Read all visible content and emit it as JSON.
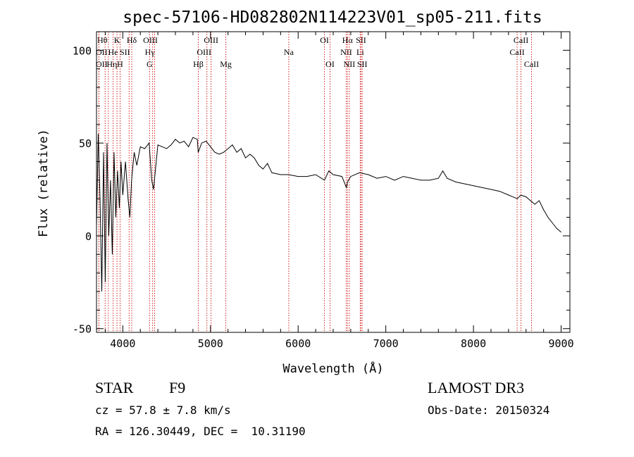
{
  "chart_data": {
    "type": "line",
    "title": "spec-57106-HD082802N114223V01_sp05-211.fits",
    "xlabel": "Wavelength (Å)",
    "ylabel": "Flux (relative)",
    "xlim": [
      3700,
      9100
    ],
    "ylim": [
      -52,
      110
    ],
    "xticks": [
      4000,
      5000,
      6000,
      7000,
      8000,
      9000
    ],
    "yticks": [
      -50,
      0,
      50,
      100
    ],
    "series": [
      {
        "name": "flux",
        "x": [
          3700,
          3720,
          3740,
          3760,
          3780,
          3800,
          3820,
          3840,
          3860,
          3880,
          3900,
          3920,
          3940,
          3960,
          3980,
          4000,
          4030,
          4060,
          4080,
          4100,
          4130,
          4160,
          4200,
          4250,
          4300,
          4330,
          4350,
          4400,
          4450,
          4500,
          4550,
          4600,
          4650,
          4700,
          4750,
          4800,
          4850,
          4860,
          4900,
          4950,
          5000,
          5050,
          5100,
          5150,
          5200,
          5250,
          5300,
          5350,
          5400,
          5450,
          5500,
          5550,
          5600,
          5650,
          5700,
          5800,
          5890,
          6000,
          6100,
          6200,
          6300,
          6350,
          6400,
          6500,
          6550,
          6563,
          6600,
          6700,
          6800,
          6900,
          7000,
          7100,
          7200,
          7300,
          7400,
          7500,
          7600,
          7650,
          7700,
          7800,
          7900,
          8000,
          8100,
          8200,
          8300,
          8400,
          8450,
          8500,
          8540,
          8600,
          8650,
          8700,
          8750,
          8800,
          8850,
          8900,
          8950,
          9000
        ],
        "y": [
          5,
          55,
          20,
          -30,
          45,
          -25,
          50,
          0,
          30,
          -10,
          45,
          10,
          35,
          15,
          40,
          22,
          40,
          20,
          10,
          30,
          45,
          38,
          48,
          47,
          50,
          30,
          25,
          49,
          48,
          47,
          49,
          52,
          50,
          51,
          48,
          53,
          52,
          45,
          50,
          51,
          48,
          45,
          44,
          45,
          47,
          49,
          45,
          47,
          42,
          44,
          42,
          38,
          36,
          39,
          34,
          33,
          33,
          32,
          32,
          33,
          30,
          35,
          33,
          32,
          26,
          29,
          32,
          34,
          33,
          31,
          32,
          30,
          32,
          31,
          30,
          30,
          31,
          35,
          31,
          29,
          28,
          27,
          26,
          25,
          24,
          22,
          21,
          20,
          22,
          21,
          19,
          17,
          19,
          14,
          10,
          7,
          4,
          2
        ]
      }
    ],
    "lines": [
      {
        "label": "Hθ",
        "x": 3798,
        "row": 0,
        "dx": -4
      },
      {
        "label": "OII",
        "x": 3727,
        "row": 1,
        "dx": 4
      },
      {
        "label": "OII",
        "x": 3727,
        "row": 2,
        "dx": 4
      },
      {
        "label": "Hη",
        "x": 3835,
        "row": 2,
        "dx": 5
      },
      {
        "label": "He",
        "x": 3889,
        "row": 1,
        "dx": 0
      },
      {
        "label": "K",
        "x": 3934,
        "row": 0,
        "dx": 0
      },
      {
        "label": "H",
        "x": 3969,
        "row": 2,
        "dx": 0
      },
      {
        "label": "SII",
        "x": 4072,
        "row": 1,
        "dx": -6
      },
      {
        "label": "Hδ",
        "x": 4102,
        "row": 0,
        "dx": 0
      },
      {
        "label": "Hγ",
        "x": 4340,
        "row": 1,
        "dx": -4
      },
      {
        "label": "G",
        "x": 4305,
        "row": 2,
        "dx": 0
      },
      {
        "label": "OIII",
        "x": 4363,
        "row": 0,
        "dx": -6
      },
      {
        "label": "Hβ",
        "x": 4861,
        "row": 2,
        "dx": 0
      },
      {
        "label": "OIII",
        "x": 4959,
        "row": 1,
        "dx": -4
      },
      {
        "label": "OIII",
        "x": 5007,
        "row": 0,
        "dx": 0
      },
      {
        "label": "Mg",
        "x": 5175,
        "row": 2,
        "dx": 0
      },
      {
        "label": "Na",
        "x": 5893,
        "row": 1,
        "dx": 0
      },
      {
        "label": "OI",
        "x": 6300,
        "row": 0,
        "dx": 0
      },
      {
        "label": "OI",
        "x": 6364,
        "row": 2,
        "dx": 0
      },
      {
        "label": "NII",
        "x": 6548,
        "row": 1,
        "dx": 0
      },
      {
        "label": "Hα",
        "x": 6563,
        "row": 0,
        "dx": 0
      },
      {
        "label": "NII",
        "x": 6584,
        "row": 2,
        "dx": 0
      },
      {
        "label": "Li",
        "x": 6708,
        "row": 1,
        "dx": 0
      },
      {
        "label": "SII",
        "x": 6717,
        "row": 0,
        "dx": 0
      },
      {
        "label": "SII",
        "x": 6731,
        "row": 2,
        "dx": 0
      },
      {
        "label": "CaII",
        "x": 8498,
        "row": 1,
        "dx": 0
      },
      {
        "label": "CaII",
        "x": 8542,
        "row": 0,
        "dx": 0
      },
      {
        "label": "CaII",
        "x": 8662,
        "row": 2,
        "dx": 0
      }
    ]
  },
  "info": {
    "object_class": "STAR",
    "subclass": "F9",
    "survey": "LAMOST DR3",
    "cz": "cz = 57.8 ± 7.8 km/s",
    "obs_date": "Obs-Date: 20150324",
    "coords": "RA = 126.30449, DEC =  10.31190"
  }
}
